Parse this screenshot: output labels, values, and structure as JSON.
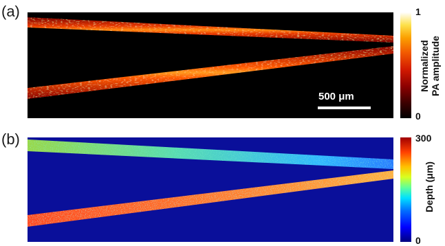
{
  "panel_a": {
    "label": "(a)",
    "colorbar": {
      "max_label": "1",
      "min_label": "0",
      "title_line1": "Normalized",
      "title_line2": "PA amplitude"
    },
    "scale_bar": {
      "label": "500 μm"
    }
  },
  "panel_b": {
    "label": "(b)",
    "colorbar": {
      "max_label": "300",
      "min_label": "0",
      "title": "Depth (μm)"
    }
  },
  "colors": {
    "panel_a_background": "#000000",
    "panel_b_background": "#0a0f9a",
    "hot_core": "#ff6a10",
    "hot_edge": "#b00000",
    "jet_upper_vessel": "#4fd9c0",
    "jet_lower_vessel": "#ff6a2a"
  }
}
